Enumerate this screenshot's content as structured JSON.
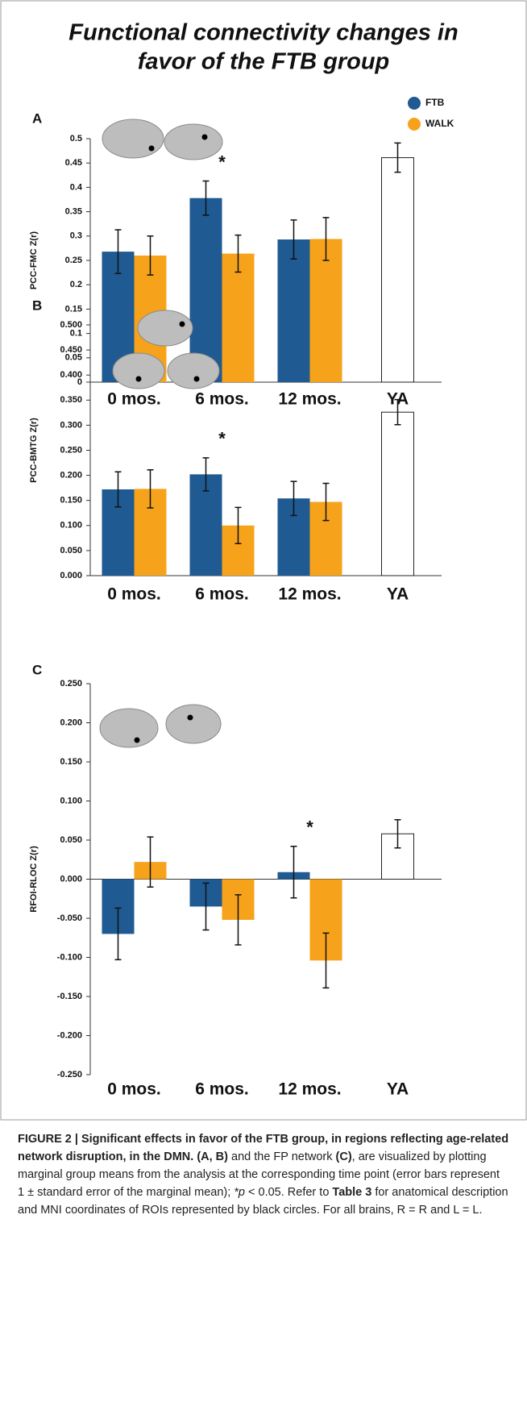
{
  "title": [
    "Functional connectivity changes in",
    "favor of the FTB group"
  ],
  "chart_data": [
    {
      "type": "bar",
      "panel": "A",
      "ylabel": "PCC-FMC Z(r)",
      "categories": [
        "0 mos.",
        "6 mos.",
        "12 mos.",
        "YA"
      ],
      "series": [
        {
          "name": "FTB",
          "color": "#1f5a93",
          "values": [
            0.268,
            0.378,
            0.293,
            null
          ],
          "errors": [
            0.045,
            0.035,
            0.04,
            null
          ]
        },
        {
          "name": "WALK",
          "color": "#f6a31b",
          "values": [
            0.26,
            0.264,
            0.294,
            null
          ],
          "errors": [
            0.04,
            0.038,
            0.044,
            null
          ]
        },
        {
          "color": "#ffffff",
          "values": [
            null,
            null,
            null,
            0.461
          ],
          "errors": [
            null,
            null,
            null,
            0.03
          ]
        }
      ],
      "ylim": [
        0,
        0.5
      ],
      "yticks": [
        0,
        0.05,
        0.1,
        0.15,
        0.2,
        0.25,
        0.3,
        0.35,
        0.4,
        0.45,
        0.5
      ],
      "annotations": [
        {
          "text": "*",
          "x": "6 mos."
        }
      ],
      "legend": "upper right"
    },
    {
      "type": "bar",
      "panel": "B",
      "ylabel": "PCC-BMTG  Z(r)",
      "categories": [
        "0 mos.",
        "6 mos.",
        "12 mos.",
        "YA"
      ],
      "series": [
        {
          "name": "FTB",
          "color": "#1f5a93",
          "values": [
            0.172,
            0.202,
            0.154,
            null
          ],
          "errors": [
            0.035,
            0.033,
            0.034,
            null
          ]
        },
        {
          "name": "WALK",
          "color": "#f6a31b",
          "values": [
            0.173,
            0.1,
            0.147,
            null
          ],
          "errors": [
            0.038,
            0.036,
            0.037,
            null
          ]
        },
        {
          "color": "#ffffff",
          "values": [
            null,
            null,
            null,
            0.326
          ],
          "errors": [
            null,
            null,
            null,
            0.025
          ]
        }
      ],
      "ylim": [
        0,
        0.5
      ],
      "yticks": [
        {
          "value": 0,
          "label": "0.000"
        },
        {
          "value": 0.05,
          "label": "0.050"
        },
        {
          "value": 0.1,
          "label": "0.100"
        },
        {
          "value": 0.15,
          "label": "0.150"
        },
        {
          "value": 0.2,
          "label": "0.200"
        },
        {
          "value": 0.25,
          "label": "0.250"
        },
        {
          "value": 0.3,
          "label": "0.300"
        },
        {
          "value": 0.35,
          "label": "0.350"
        },
        {
          "value": 0.4,
          "label": "0.400"
        },
        {
          "value": 0.45,
          "label": "0.450"
        },
        {
          "value": 0.5,
          "label": "0.500"
        }
      ],
      "annotations": [
        {
          "text": "*",
          "x": "6 mos."
        }
      ]
    },
    {
      "type": "bar",
      "panel": "C",
      "ylabel": "RFOI-RLOC  Z(r)",
      "categories": [
        "0 mos.",
        "6 mos.",
        "12 mos.",
        "YA"
      ],
      "series": [
        {
          "name": "FTB",
          "color": "#1f5a93",
          "values": [
            -0.07,
            -0.035,
            0.009,
            null
          ],
          "errors": [
            0.033,
            0.03,
            0.033,
            null
          ]
        },
        {
          "name": "WALK",
          "color": "#f6a31b",
          "values": [
            0.022,
            -0.052,
            -0.104,
            null
          ],
          "errors": [
            0.032,
            0.032,
            0.035,
            null
          ]
        },
        {
          "color": "#ffffff",
          "values": [
            null,
            null,
            null,
            0.058
          ],
          "errors": [
            null,
            null,
            null,
            0.018
          ]
        }
      ],
      "ylim": [
        -0.25,
        0.25
      ],
      "yticks": [
        {
          "value": 0.25,
          "label": "0.250"
        },
        {
          "value": 0.2,
          "label": "0.200"
        },
        {
          "value": 0.15,
          "label": "0.150"
        },
        {
          "value": 0.1,
          "label": "0.100"
        },
        {
          "value": 0.05,
          "label": "0.050"
        },
        {
          "value": 0,
          "label": "0.000"
        },
        {
          "value": -0.05,
          "label": "-0.050"
        },
        {
          "value": -0.1,
          "label": "-0.100"
        },
        {
          "value": -0.15,
          "label": "-0.150"
        },
        {
          "value": -0.2,
          "label": "-0.200"
        },
        {
          "value": -0.25,
          "label": "-0.250"
        }
      ],
      "annotations": [
        {
          "text": "*",
          "x": "12 mos."
        }
      ]
    }
  ],
  "caption": [
    {
      "text": "FIGURE 2 | Significant effects in favor of the FTB group, in regions reflecting age-related network disruption, in the DMN. (A, B)",
      "style": "bold"
    },
    {
      "text": " and the FP network "
    },
    {
      "text": "(C)",
      "style": "bold"
    },
    {
      "text": ", are visualized by plotting marginal group means from the analysis at the corresponding time point (error bars represent 1 ± standard error of the marginal mean); "
    },
    {
      "text": "*p",
      "style": "italic"
    },
    {
      "text": " < 0.05. Refer to "
    },
    {
      "text": "Table 3",
      "style": "bold"
    },
    {
      "text": " for anatomical description and MNI coordinates of ROIs represented by black circles. For all brains, R = R and L = L."
    }
  ]
}
